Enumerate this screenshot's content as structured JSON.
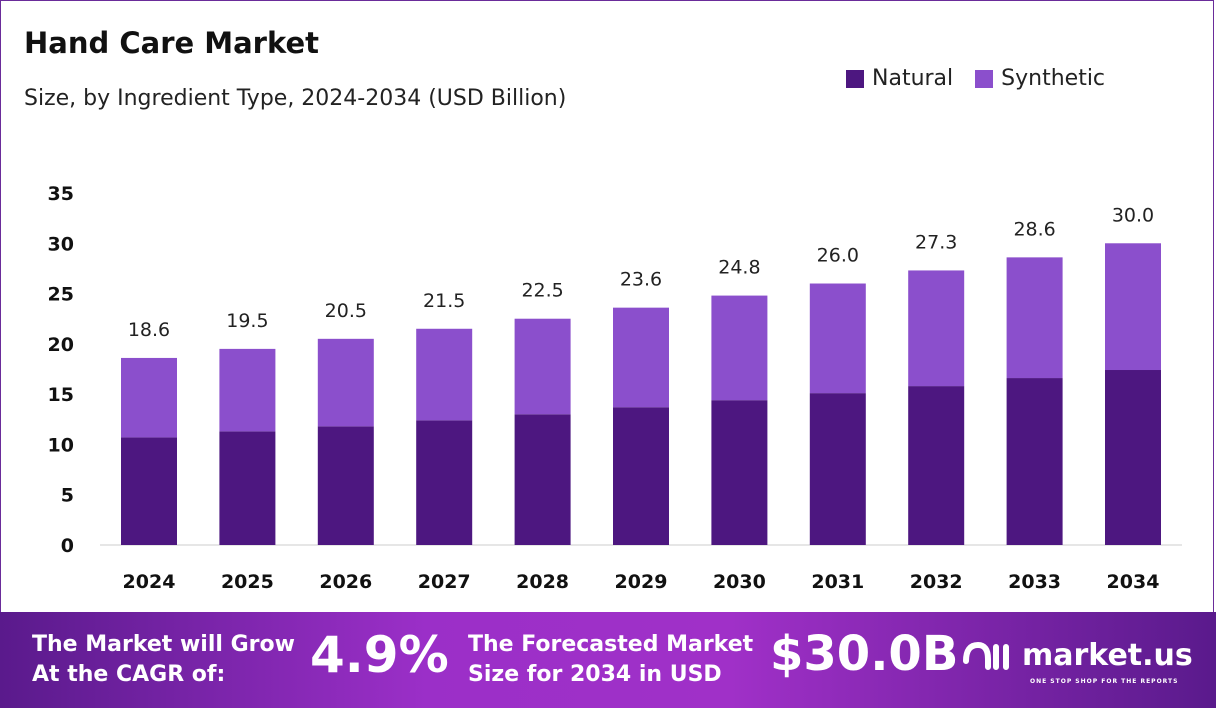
{
  "chart_data": {
    "type": "bar",
    "stacked": true,
    "title": "Hand Care Market",
    "subtitle": "Size, by Ingredient Type, 2024-2034 (USD Billion)",
    "categories": [
      "2024",
      "2025",
      "2026",
      "2027",
      "2028",
      "2029",
      "2030",
      "2031",
      "2032",
      "2033",
      "2034"
    ],
    "series": [
      {
        "name": "Natural",
        "color": "#4d1780",
        "values": [
          10.7,
          11.3,
          11.8,
          12.4,
          13.0,
          13.7,
          14.4,
          15.1,
          15.8,
          16.6,
          17.4
        ]
      },
      {
        "name": "Synthetic",
        "color": "#8b4fcc",
        "values": [
          7.9,
          8.2,
          8.7,
          9.1,
          9.5,
          9.9,
          10.4,
          10.9,
          11.5,
          12.0,
          12.6
        ]
      }
    ],
    "totals": [
      "18.6",
      "19.5",
      "20.5",
      "21.5",
      "22.5",
      "23.6",
      "24.8",
      "26.0",
      "27.3",
      "28.6",
      "30.0"
    ],
    "yticks": [
      "0",
      "5",
      "10",
      "15",
      "20",
      "25",
      "30",
      "35"
    ],
    "ylim": [
      0,
      35
    ],
    "grid": false,
    "legend": "top-right"
  },
  "banner": {
    "cagr_text_1": "The Market will Grow",
    "cagr_text_2": "At the CAGR of:",
    "cagr_value": "4.9%",
    "forecast_text_1": "The Forecasted Market",
    "forecast_text_2": "Size for 2034 in USD",
    "forecast_value": "$30.0B",
    "logo_text": "market.us",
    "logo_tagline": "ONE STOP SHOP FOR THE REPORTS"
  }
}
